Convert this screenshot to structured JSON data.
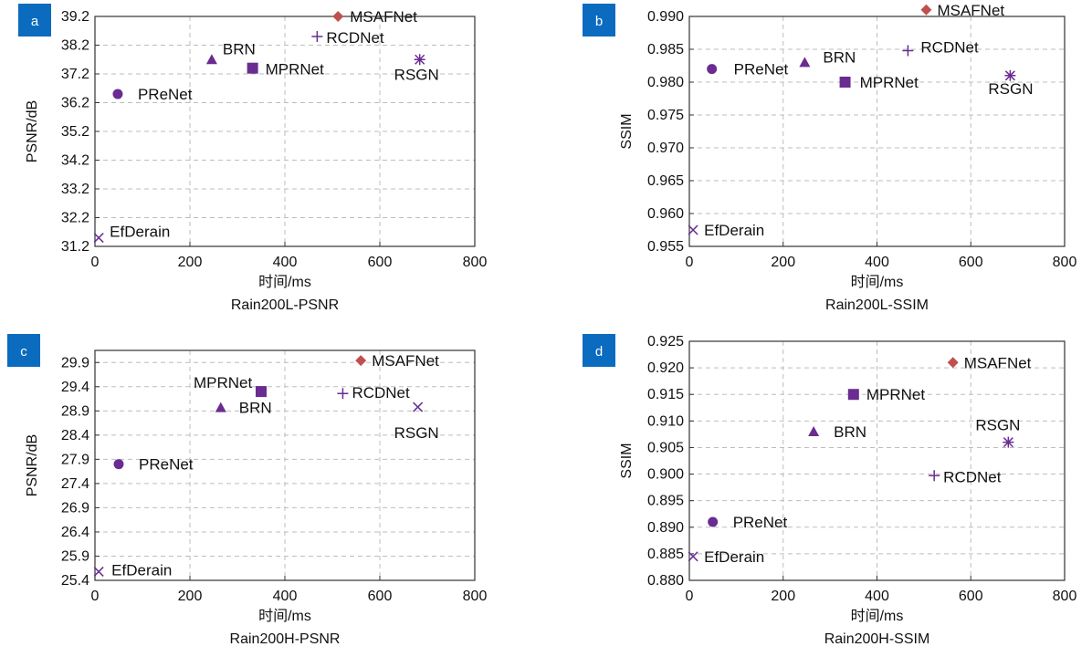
{
  "colors": {
    "purple": "#6a2c91",
    "red": "#c0504d",
    "badge": "#0b6bbf"
  },
  "chart_data": [
    {
      "type": "scatter",
      "panel": "a",
      "caption": "Rain200L-PSNR",
      "xlabel": "时间/ms",
      "ylabel": "PSNR/dB",
      "xlim": [
        0,
        800
      ],
      "ylim": [
        31.2,
        39.2
      ],
      "xticks": [
        "0",
        "200",
        "400",
        "600",
        "800"
      ],
      "yticks": [
        "31.2",
        "32.2",
        "33.2",
        "34.2",
        "35.2",
        "36.2",
        "37.2",
        "38.2",
        "39.2"
      ],
      "points": [
        {
          "name": "MSAFNet",
          "x": 512,
          "y": 39.2,
          "marker": "diamond",
          "color": "#c0504d"
        },
        {
          "name": "RCDNet",
          "x": 468,
          "y": 38.5,
          "marker": "plus",
          "color": "#6a2c91"
        },
        {
          "name": "BRN",
          "x": 246,
          "y": 37.7,
          "marker": "triangle",
          "color": "#6a2c91"
        },
        {
          "name": "MPRNet",
          "x": 332,
          "y": 37.4,
          "marker": "square",
          "color": "#6a2c91"
        },
        {
          "name": "RSGN",
          "x": 684,
          "y": 37.7,
          "marker": "star",
          "color": "#6a2c91"
        },
        {
          "name": "PReNet",
          "x": 48,
          "y": 36.5,
          "marker": "circle",
          "color": "#6a2c91"
        },
        {
          "name": "EfDerain",
          "x": 8,
          "y": 31.5,
          "marker": "cross",
          "color": "#6a2c91"
        }
      ]
    },
    {
      "type": "scatter",
      "panel": "b",
      "caption": "Rain200L-SSIM",
      "xlabel": "时间/ms",
      "ylabel": "SSIM",
      "xlim": [
        0,
        800
      ],
      "ylim": [
        0.955,
        0.99
      ],
      "xticks": [
        "0",
        "200",
        "400",
        "600",
        "800"
      ],
      "yticks": [
        "0.955",
        "0.960",
        "0.965",
        "0.970",
        "0.975",
        "0.980",
        "0.985",
        "0.990"
      ],
      "points": [
        {
          "name": "MSAFNet",
          "x": 505,
          "y": 0.991,
          "marker": "diamond",
          "color": "#c0504d"
        },
        {
          "name": "RCDNet",
          "x": 466,
          "y": 0.9848,
          "marker": "plus",
          "color": "#6a2c91"
        },
        {
          "name": "BRN",
          "x": 246,
          "y": 0.983,
          "marker": "triangle",
          "color": "#6a2c91"
        },
        {
          "name": "PReNet",
          "x": 48,
          "y": 0.982,
          "marker": "circle",
          "color": "#6a2c91"
        },
        {
          "name": "MPRNet",
          "x": 332,
          "y": 0.98,
          "marker": "square",
          "color": "#6a2c91"
        },
        {
          "name": "RSGN",
          "x": 684,
          "y": 0.981,
          "marker": "star",
          "color": "#6a2c91"
        },
        {
          "name": "EfDerain",
          "x": 8,
          "y": 0.9575,
          "marker": "cross",
          "color": "#6a2c91"
        }
      ]
    },
    {
      "type": "scatter",
      "panel": "c",
      "caption": "Rain200H-PSNR",
      "xlabel": "时间/ms",
      "ylabel": "PSNR/dB",
      "xlim": [
        0,
        800
      ],
      "ylim": [
        25.4,
        30.15
      ],
      "xticks": [
        "0",
        "200",
        "400",
        "600",
        "800"
      ],
      "yticks": [
        "25.4",
        "25.9",
        "26.4",
        "26.9",
        "27.4",
        "27.9",
        "28.4",
        "28.9",
        "29.4",
        "29.9"
      ],
      "points": [
        {
          "name": "MSAFNet",
          "x": 560,
          "y": 29.94,
          "marker": "diamond",
          "color": "#c0504d"
        },
        {
          "name": "MPRNet",
          "x": 350,
          "y": 29.3,
          "marker": "square",
          "color": "#6a2c91"
        },
        {
          "name": "RCDNet",
          "x": 522,
          "y": 29.26,
          "marker": "plus",
          "color": "#6a2c91"
        },
        {
          "name": "BRN",
          "x": 265,
          "y": 28.97,
          "marker": "triangle",
          "color": "#6a2c91"
        },
        {
          "name": "RSGN",
          "x": 680,
          "y": 28.98,
          "marker": "cross",
          "color": "#6a2c91"
        },
        {
          "name": "PReNet",
          "x": 50,
          "y": 27.8,
          "marker": "circle",
          "color": "#6a2c91"
        },
        {
          "name": "EfDerain",
          "x": 8,
          "y": 25.58,
          "marker": "cross",
          "color": "#6a2c91"
        }
      ]
    },
    {
      "type": "scatter",
      "panel": "d",
      "caption": "Rain200H-SSIM",
      "xlabel": "时间/ms",
      "ylabel": "SSIM",
      "xlim": [
        0,
        800
      ],
      "ylim": [
        0.88,
        0.925
      ],
      "xticks": [
        "0",
        "200",
        "400",
        "600",
        "800"
      ],
      "yticks": [
        "0.880",
        "0.885",
        "0.890",
        "0.895",
        "0.900",
        "0.905",
        "0.910",
        "0.915",
        "0.920",
        "0.925"
      ],
      "points": [
        {
          "name": "MSAFNet",
          "x": 562,
          "y": 0.921,
          "marker": "diamond",
          "color": "#c0504d"
        },
        {
          "name": "MPRNet",
          "x": 350,
          "y": 0.915,
          "marker": "square",
          "color": "#6a2c91"
        },
        {
          "name": "BRN",
          "x": 265,
          "y": 0.908,
          "marker": "triangle",
          "color": "#6a2c91"
        },
        {
          "name": "RSGN",
          "x": 680,
          "y": 0.906,
          "marker": "star",
          "color": "#6a2c91"
        },
        {
          "name": "RCDNet",
          "x": 522,
          "y": 0.8997,
          "marker": "plus",
          "color": "#6a2c91"
        },
        {
          "name": "PReNet",
          "x": 50,
          "y": 0.891,
          "marker": "circle",
          "color": "#6a2c91"
        },
        {
          "name": "EfDerain",
          "x": 8,
          "y": 0.8845,
          "marker": "cross",
          "color": "#6a2c91"
        }
      ]
    }
  ]
}
